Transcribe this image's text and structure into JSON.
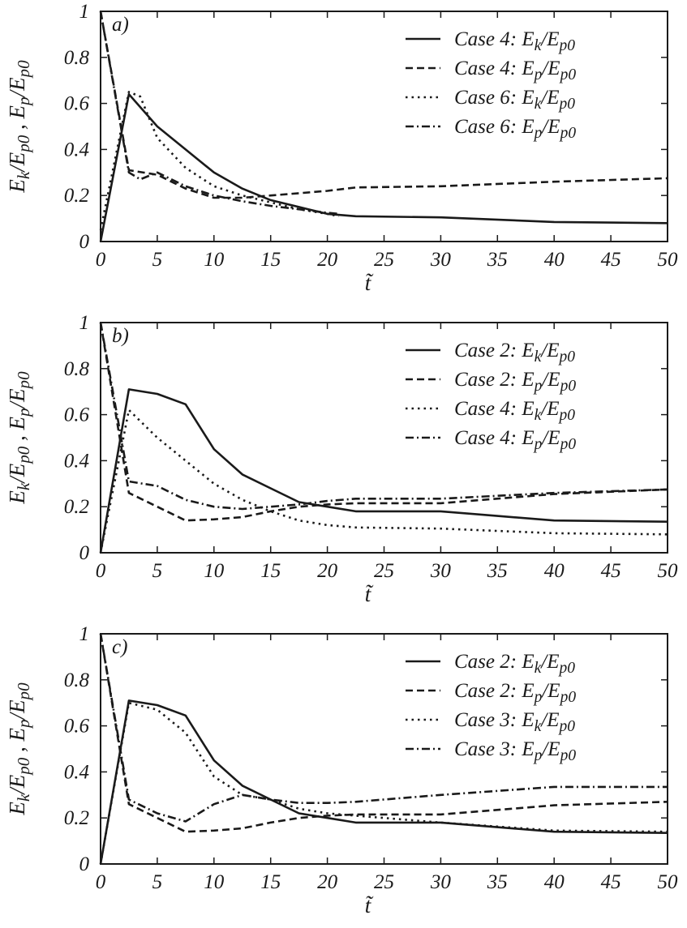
{
  "figure": {
    "y_axis_title": "E_k/E_p0 , E_p/E_p0",
    "x_axis_title": "t̃"
  },
  "chart_data": [
    {
      "type": "line",
      "panel_label": "a)",
      "xlim": [
        0,
        50
      ],
      "ylim": [
        0,
        1
      ],
      "xticks": [
        0,
        5,
        10,
        15,
        20,
        25,
        30,
        35,
        40,
        45,
        50
      ],
      "yticks": [
        0,
        0.2,
        0.4,
        0.6,
        0.8,
        1
      ],
      "ytick_labels": [
        "0",
        "0.2",
        "0.4",
        "0.6",
        "0.8",
        "1"
      ],
      "xlabel": "t̃",
      "ylabel": "E_k/E_p0 , E_p/E_p0",
      "grid": false,
      "legend_position": "top-right",
      "series": [
        {
          "name": "Case 4: E_k/E_p0",
          "style": "solid",
          "x": [
            0,
            2.5,
            5,
            7.5,
            10,
            12.5,
            15,
            17.5,
            20,
            22.5,
            30,
            40,
            50
          ],
          "y": [
            0,
            0.64,
            0.5,
            0.4,
            0.3,
            0.23,
            0.18,
            0.15,
            0.12,
            0.11,
            0.105,
            0.085,
            0.08
          ]
        },
        {
          "name": "Case 4: E_p/E_p0",
          "style": "dashed",
          "x": [
            0,
            2.5,
            5,
            7.5,
            10,
            12.5,
            15,
            17.5,
            20,
            22.5,
            30,
            40,
            50
          ],
          "y": [
            1,
            0.31,
            0.29,
            0.23,
            0.19,
            0.19,
            0.2,
            0.21,
            0.22,
            0.235,
            0.24,
            0.26,
            0.275
          ]
        },
        {
          "name": "Case 6: E_k/E_p0",
          "style": "dotted",
          "x": [
            0,
            2.5,
            3.5,
            5,
            7.5,
            10,
            12.5,
            15,
            17.5,
            20,
            21
          ],
          "y": [
            0.05,
            0.65,
            0.63,
            0.45,
            0.32,
            0.24,
            0.2,
            0.17,
            0.14,
            0.12,
            0.11
          ]
        },
        {
          "name": "Case 6: E_p/E_p0",
          "style": "dashdot",
          "x": [
            0,
            2.5,
            3.5,
            5,
            7.5,
            10,
            12.5,
            15,
            17.5,
            20,
            21
          ],
          "y": [
            1,
            0.3,
            0.27,
            0.3,
            0.24,
            0.2,
            0.175,
            0.155,
            0.14,
            0.125,
            0.12
          ]
        }
      ]
    },
    {
      "type": "line",
      "panel_label": "b)",
      "xlim": [
        0,
        50
      ],
      "ylim": [
        0,
        1
      ],
      "xticks": [
        0,
        5,
        10,
        15,
        20,
        25,
        30,
        35,
        40,
        45,
        50
      ],
      "yticks": [
        0,
        0.2,
        0.4,
        0.6,
        0.8,
        1
      ],
      "ytick_labels": [
        "0",
        "0.2",
        "0.4",
        "0.6",
        "0.8",
        "1"
      ],
      "xlabel": "t̃",
      "ylabel": "E_k/E_p0 , E_p/E_p0",
      "grid": false,
      "legend_position": "top-right",
      "series": [
        {
          "name": "Case 2: E_k/E_p0",
          "style": "solid",
          "x": [
            0,
            2.5,
            5,
            7.5,
            10,
            12.5,
            15,
            17.5,
            20,
            22.5,
            30,
            40,
            50
          ],
          "y": [
            0,
            0.71,
            0.69,
            0.645,
            0.45,
            0.34,
            0.28,
            0.22,
            0.2,
            0.18,
            0.18,
            0.14,
            0.135
          ]
        },
        {
          "name": "Case 2: E_p/E_p0",
          "style": "dashed",
          "x": [
            0,
            2.5,
            5,
            7.5,
            10,
            12.5,
            15,
            17.5,
            20,
            22.5,
            30,
            40,
            50
          ],
          "y": [
            1,
            0.26,
            0.2,
            0.14,
            0.145,
            0.155,
            0.18,
            0.2,
            0.21,
            0.215,
            0.215,
            0.255,
            0.275
          ]
        },
        {
          "name": "Case 4: E_k/E_p0",
          "style": "dotted",
          "x": [
            0,
            2.5,
            5,
            7.5,
            10,
            12.5,
            15,
            17.5,
            20,
            22.5,
            30,
            40,
            50
          ],
          "y": [
            0,
            0.62,
            0.5,
            0.4,
            0.3,
            0.23,
            0.18,
            0.14,
            0.12,
            0.11,
            0.105,
            0.085,
            0.08
          ]
        },
        {
          "name": "Case 4: E_p/E_p0",
          "style": "dashdot",
          "x": [
            0,
            2.5,
            5,
            7.5,
            10,
            12.5,
            15,
            17.5,
            20,
            22.5,
            30,
            40,
            50
          ],
          "y": [
            1,
            0.31,
            0.29,
            0.23,
            0.2,
            0.19,
            0.2,
            0.21,
            0.225,
            0.235,
            0.235,
            0.26,
            0.275
          ]
        }
      ]
    },
    {
      "type": "line",
      "panel_label": "c)",
      "xlim": [
        0,
        50
      ],
      "ylim": [
        0,
        1
      ],
      "xticks": [
        0,
        5,
        10,
        15,
        20,
        25,
        30,
        35,
        40,
        45,
        50
      ],
      "yticks": [
        0,
        0.2,
        0.4,
        0.6,
        0.8,
        1
      ],
      "ytick_labels": [
        "0",
        "0.2",
        "0.4",
        "0.6",
        "0.8",
        "1"
      ],
      "xlabel": "t̃",
      "ylabel": "E_k/E_p0 , E_p/E_p0",
      "grid": false,
      "legend_position": "top-right",
      "series": [
        {
          "name": "Case 2: E_k/E_p0",
          "style": "solid",
          "x": [
            0,
            2.5,
            5,
            7.5,
            10,
            12.5,
            15,
            17.5,
            20,
            22.5,
            30,
            40,
            50
          ],
          "y": [
            0,
            0.71,
            0.69,
            0.645,
            0.45,
            0.34,
            0.28,
            0.22,
            0.2,
            0.18,
            0.18,
            0.14,
            0.135
          ]
        },
        {
          "name": "Case 2: E_p/E_p0",
          "style": "dashed",
          "x": [
            0,
            2.5,
            5,
            7.5,
            10,
            12.5,
            15,
            17.5,
            20,
            22.5,
            30,
            40,
            50
          ],
          "y": [
            1,
            0.26,
            0.2,
            0.14,
            0.145,
            0.155,
            0.18,
            0.2,
            0.21,
            0.215,
            0.215,
            0.255,
            0.27
          ]
        },
        {
          "name": "Case 3: E_k/E_p0",
          "style": "dotted",
          "x": [
            0,
            2.5,
            5,
            7.5,
            10,
            12.5,
            15,
            17.5,
            20,
            22.5,
            30,
            40,
            50
          ],
          "y": [
            0,
            0.7,
            0.67,
            0.57,
            0.38,
            0.3,
            0.28,
            0.24,
            0.22,
            0.21,
            0.18,
            0.145,
            0.14
          ]
        },
        {
          "name": "Case 3: E_p/E_p0",
          "style": "dashdot",
          "x": [
            0,
            2.5,
            5,
            7.5,
            10,
            12.5,
            15,
            17.5,
            20,
            22.5,
            30,
            40,
            50
          ],
          "y": [
            1,
            0.28,
            0.22,
            0.185,
            0.26,
            0.3,
            0.28,
            0.265,
            0.265,
            0.27,
            0.3,
            0.335,
            0.335
          ]
        }
      ]
    }
  ]
}
